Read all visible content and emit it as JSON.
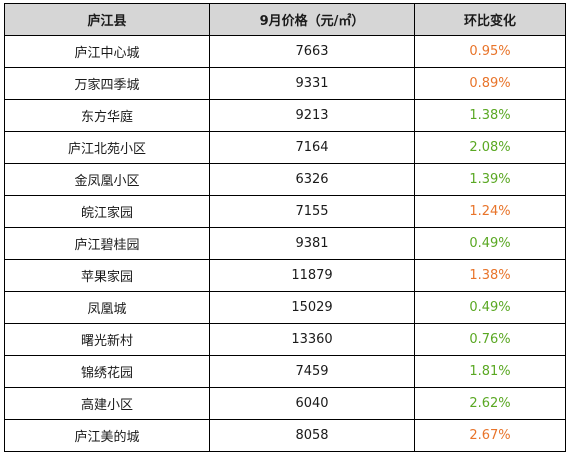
{
  "table": {
    "headers": [
      "庐江县",
      "9月价格（元/㎡）",
      "环比变化"
    ],
    "rows": [
      {
        "name": "庐江中心城",
        "price": "7663",
        "change": "0.95%",
        "trend": "up"
      },
      {
        "name": "万家四季城",
        "price": "9331",
        "change": "0.89%",
        "trend": "up"
      },
      {
        "name": "东方华庭",
        "price": "9213",
        "change": "1.38%",
        "trend": "down"
      },
      {
        "name": "庐江北苑小区",
        "price": "7164",
        "change": "2.08%",
        "trend": "down"
      },
      {
        "name": "金凤凰小区",
        "price": "6326",
        "change": "1.39%",
        "trend": "down"
      },
      {
        "name": "皖江家园",
        "price": "7155",
        "change": "1.24%",
        "trend": "up"
      },
      {
        "name": "庐江碧桂园",
        "price": "9381",
        "change": "0.49%",
        "trend": "down"
      },
      {
        "name": "苹果家园",
        "price": "11879",
        "change": "1.38%",
        "trend": "up"
      },
      {
        "name": "凤凰城",
        "price": "15029",
        "change": "0.49%",
        "trend": "down"
      },
      {
        "name": "曙光新村",
        "price": "13360",
        "change": "0.76%",
        "trend": "down"
      },
      {
        "name": "锦绣花园",
        "price": "7459",
        "change": "1.81%",
        "trend": "down"
      },
      {
        "name": "高建小区",
        "price": "6040",
        "change": "2.62%",
        "trend": "down"
      },
      {
        "name": "庐江美的城",
        "price": "8058",
        "change": "2.67%",
        "trend": "up"
      }
    ]
  },
  "colors": {
    "header_bg": "#d6d6d6",
    "up": "#e8742a",
    "down": "#5aa823",
    "border": "#000000"
  }
}
